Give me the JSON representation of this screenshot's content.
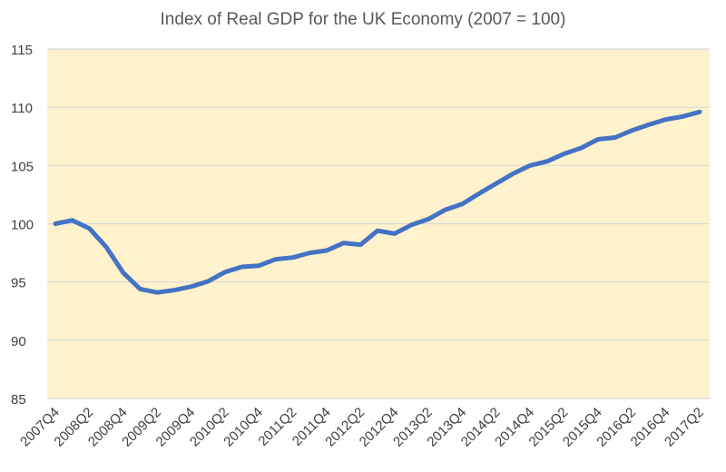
{
  "chart_data": {
    "type": "line",
    "title": "Index of Real GDP for the UK Economy (2007 = 100)",
    "xlabel": "",
    "ylabel": "",
    "ylim": [
      85,
      115
    ],
    "yticks": [
      85,
      90,
      95,
      100,
      105,
      110,
      115
    ],
    "grid": true,
    "legend": "none",
    "colors": {
      "line": "#4472C4",
      "plot_background": "#FFF2CC",
      "grid": "#D9D9D9"
    },
    "x_tick_labels": [
      "2007Q4",
      "2008Q2",
      "2008Q4",
      "2009Q2",
      "2009Q4",
      "2010Q2",
      "2010Q4",
      "2011Q2",
      "2011Q4",
      "2012Q2",
      "2012Q4",
      "2013Q2",
      "2013Q4",
      "2014Q2",
      "2014Q4",
      "2015Q2",
      "2015Q4",
      "2016Q2",
      "2016Q4",
      "2017Q2"
    ],
    "categories": [
      "2007Q4",
      "2008Q1",
      "2008Q2",
      "2008Q3",
      "2008Q4",
      "2009Q1",
      "2009Q2",
      "2009Q3",
      "2009Q4",
      "2010Q1",
      "2010Q2",
      "2010Q3",
      "2010Q4",
      "2011Q1",
      "2011Q2",
      "2011Q3",
      "2011Q4",
      "2012Q1",
      "2012Q2",
      "2012Q3",
      "2012Q4",
      "2013Q1",
      "2013Q2",
      "2013Q3",
      "2013Q4",
      "2014Q1",
      "2014Q2",
      "2014Q3",
      "2014Q4",
      "2015Q1",
      "2015Q2",
      "2015Q3",
      "2015Q4",
      "2016Q1",
      "2016Q2",
      "2016Q3",
      "2016Q4",
      "2017Q1",
      "2017Q2"
    ],
    "values": [
      100.0,
      100.3,
      99.6,
      98.0,
      95.8,
      94.4,
      94.1,
      94.3,
      94.6,
      95.05,
      95.85,
      96.3,
      96.4,
      96.95,
      97.1,
      97.5,
      97.7,
      98.35,
      98.2,
      99.4,
      99.15,
      99.9,
      100.4,
      101.2,
      101.7,
      102.6,
      103.45,
      104.3,
      105.0,
      105.35,
      106.0,
      106.5,
      107.25,
      107.4,
      108.0,
      108.5,
      108.95,
      109.2,
      109.6
    ]
  }
}
